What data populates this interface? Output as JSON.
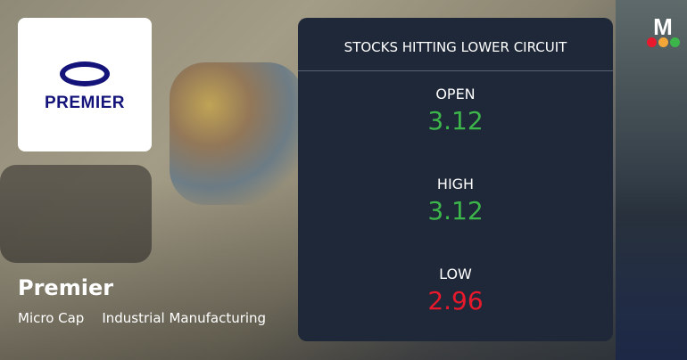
{
  "company": {
    "logo_text": "PREMIER",
    "name": "Premier",
    "market_cap": "Micro Cap",
    "sector": "Industrial Manufacturing"
  },
  "panel": {
    "title": "STOCKS HITTING LOWER CIRCUIT",
    "stats": [
      {
        "label": "OPEN",
        "value": "3.12",
        "color": "#3cb54a"
      },
      {
        "label": "HIGH",
        "value": "3.12",
        "color": "#3cb54a"
      },
      {
        "label": "LOW",
        "value": "2.96",
        "color": "#e8192c"
      }
    ]
  },
  "brand": {
    "logo_text": "M",
    "dot_colors": [
      "#e8192c",
      "#f4a639",
      "#3cb54a"
    ]
  }
}
